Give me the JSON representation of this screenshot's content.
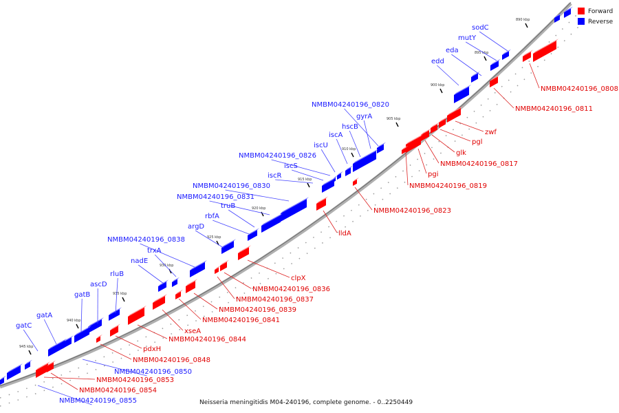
{
  "caption": "Neisseria meningitidis M04-240196, complete genome. - 0..2250449",
  "legend": [
    {
      "label": "Forward",
      "color": "#ff0000"
    },
    {
      "label": "Reverse",
      "color": "#0000ff"
    }
  ],
  "colors": {
    "forward": "#ff0000",
    "reverse": "#0000ff",
    "forward_text": "#e00000",
    "reverse_text": "#1a1aff",
    "backbone": "#808080"
  },
  "ticks": [
    "890 kbp",
    "895 kbp",
    "900 kbp",
    "905 kbp",
    "910 kbp",
    "915 kbp",
    "920 kbp",
    "925 kbp",
    "930 kbp",
    "935 kbp",
    "940 kbp",
    "945 kbp"
  ],
  "reverse_labels": [
    "sodC",
    "mutY",
    "eda",
    "edd",
    "NMBM04240196_0820",
    "gyrA",
    "hscB",
    "iscA",
    "iscU",
    "NMBM04240196_0826",
    "iscS",
    "iscR",
    "NMBM04240196_0830",
    "NMBM04240196_0831",
    "truB",
    "rbfA",
    "argD",
    "NMBM04240196_0838",
    "trxA",
    "nadE",
    "rluB",
    "ascD",
    "gatB",
    "gatA",
    "gatC",
    "NMBM04240196_0850",
    "NMBM04240196_0855"
  ],
  "forward_labels": [
    "NMBM04240196_0808",
    "NMBM04240196_0811",
    "zwf",
    "pgl",
    "glk",
    "NMBM04240196_0817",
    "pgi",
    "NMBM04240196_0819",
    "NMBM04240196_0823",
    "lldA",
    "clpX",
    "NMBM04240196_0836",
    "NMBM04240196_0837",
    "NMBM04240196_0839",
    "NMBM04240196_0841",
    "xseA",
    "NMBM04240196_0844",
    "pdxH",
    "NMBM04240196_0848",
    "NMBM04240196_0853",
    "NMBM04240196_0854"
  ]
}
